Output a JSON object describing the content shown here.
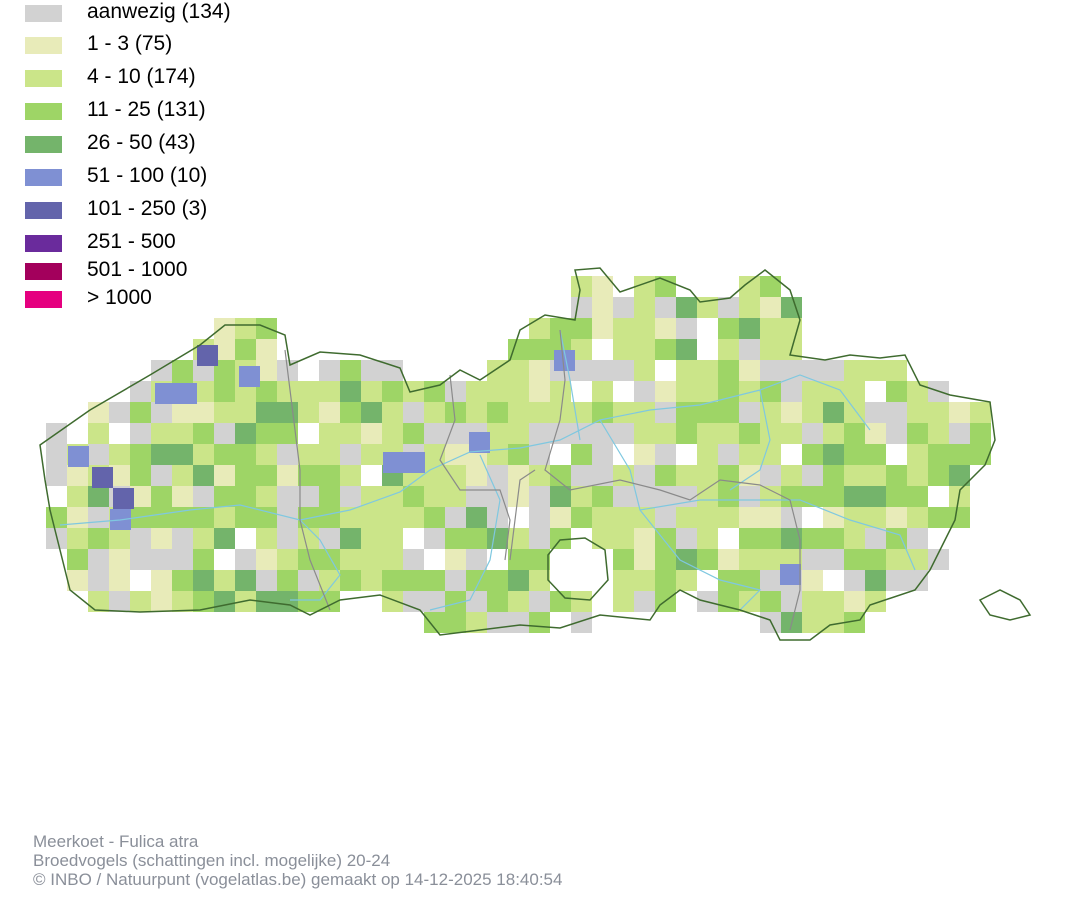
{
  "legend": {
    "items": [
      {
        "label": "aanwezig (134)",
        "color": "#d2d2d2"
      },
      {
        "label": "1 - 3 (75)",
        "color": "#e8ebb9"
      },
      {
        "label": "4 - 10 (174)",
        "color": "#cbe589"
      },
      {
        "label": "11 - 25 (131)",
        "color": "#9ed566"
      },
      {
        "label": "26 - 50 (43)",
        "color": "#74b46b"
      },
      {
        "label": "51 - 100 (10)",
        "color": "#7f90d3"
      },
      {
        "label": "101 - 250 (3)",
        "color": "#6364ab"
      },
      {
        "label": "251 - 500",
        "color": "#6a2b9c"
      },
      {
        "label": "501 - 1000",
        "color": "#a3005c"
      },
      {
        "label": "> 1000",
        "color": "#e5007f"
      }
    ]
  },
  "map": {
    "border_color": "#3f6b2f",
    "province_border_color": "#8a8a8a",
    "river_color": "#7fc8e0"
  },
  "footer": {
    "line1": "Meerkoet - Fulica atra",
    "line2": "Broedvogels (schattingen incl. mogelijke) 20-24",
    "line3": "© INBO / Natuurpunt (vogelatlas.be) gemaakt op 14-12-2025 18:40:54"
  }
}
